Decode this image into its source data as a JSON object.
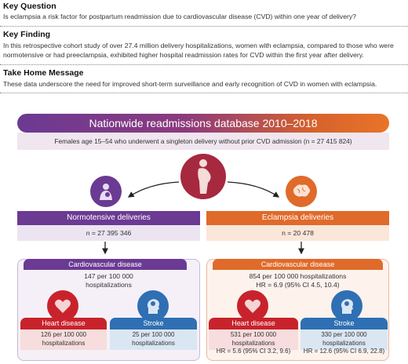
{
  "key_question": {
    "title": "Key Question",
    "text": "Is eclampsia a risk factor for postpartum readmission due to cardiovascular disease (CVD) within one year of delivery?"
  },
  "key_finding": {
    "title": "Key Finding",
    "text": "In this retrospective cohort study of over 27.4 million delivery hospitalizations, women with eclampsia, compared to those who were normotensive or had preeclampsia, exhibited higher hospital readmission rates for CVD within the first year after delivery."
  },
  "take_home": {
    "title": "Take Home Message",
    "text": "These data underscore the need for improved short-term surveillance and early recognition of CVD in women with eclampsia."
  },
  "figure": {
    "title": "Nationwide readmissions database 2010–2018",
    "cohort": "Females age 15–54 who underwent a singleton delivery without prior CVD admission (n = 27 415 824)",
    "left": {
      "group": "Normotensive deliveries",
      "n": "n = 27 395 346",
      "cvd_title": "Cardiovascular disease",
      "cvd_line1": "147 per 100 000",
      "cvd_line2": "hospitalizations",
      "heart_title": "Heart disease",
      "heart_line1": "126 per 100 000",
      "heart_line2": "hospitalizations",
      "stroke_title": "Stroke",
      "stroke_line1": "25 per 100 000",
      "stroke_line2": "hospitalizations"
    },
    "right": {
      "group": "Eclampsia deliveries",
      "n": "n = 20 478",
      "cvd_title": "Cardiovascular disease",
      "cvd_line1": "854 per 100 000 hospitalizations",
      "cvd_line2": "HR = 6.9 (95% CI 4.5, 10.4)",
      "heart_title": "Heart disease",
      "heart_line1": "531 per 100 000 hospitalizations",
      "heart_line2": "HR = 5.6 (95% CI 3.2, 9.6)",
      "stroke_title": "Stroke",
      "stroke_line1": "330 per 100 000 hospitalizations",
      "stroke_line2": "HR = 12.6 (95% CI 6.9, 22.8)"
    },
    "colors": {
      "purple": "#6b3a93",
      "orange": "#e06a2a",
      "heart_red": "#c8232c",
      "stroke_blue": "#2f6fb3"
    },
    "icons": [
      "pregnant-woman-icon",
      "mother-baby-icon",
      "brain-icon",
      "heart-icon",
      "head-brain-icon"
    ]
  }
}
